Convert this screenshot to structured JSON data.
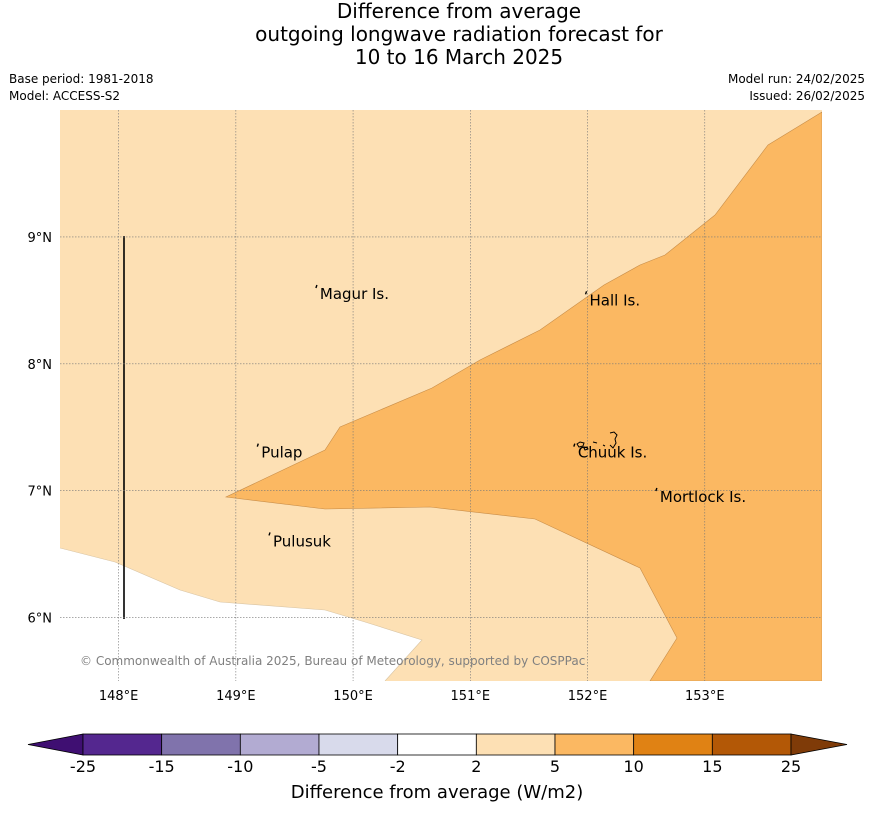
{
  "title": {
    "line1": "Difference from average",
    "line2": "outgoing longwave radiation forecast for",
    "line3": "10 to 16 March 2025"
  },
  "meta": {
    "base_period": "Base period: 1981-2018",
    "model": "Model: ACCESS-S2",
    "model_run": "Model run: 24/02/2025",
    "issued": "Issued: 26/02/2025"
  },
  "map": {
    "lon_range": [
      147.5,
      154.0
    ],
    "lat_range": [
      5.5,
      10.0
    ],
    "lon_ticks": [
      "148°E",
      "149°E",
      "150°E",
      "151°E",
      "152°E",
      "153°E"
    ],
    "lat_ticks": [
      "6°N",
      "7°N",
      "8°N",
      "9°N"
    ],
    "colors": {
      "band_2_5": "#fde0b4",
      "band_5_10": "#fbb862",
      "below_2": "#ffffff"
    },
    "places": [
      {
        "name": "Magur Is.",
        "lon": 149.7,
        "lat": 8.55
      },
      {
        "name": "Hall Is.",
        "lon": 152.0,
        "lat": 8.5
      },
      {
        "name": "Pulap",
        "lon": 149.2,
        "lat": 7.3
      },
      {
        "name": "Chuuk Is.",
        "lon": 151.9,
        "lat": 7.3
      },
      {
        "name": "Mortlock Is.",
        "lon": 152.6,
        "lat": 6.95
      },
      {
        "name": "Pulusuk",
        "lon": 149.3,
        "lat": 6.6
      }
    ],
    "copyright": "© Commonwealth of Australia 2025, Bureau of Meteorology, supported by COSPPac"
  },
  "colorbar": {
    "label": "Difference from average (W/m2)",
    "ticks": [
      "-25",
      "-15",
      "-10",
      "-5",
      "-2",
      "2",
      "5",
      "10",
      "15",
      "25"
    ],
    "colors": [
      "#3f0f72",
      "#54278f",
      "#8073ac",
      "#b2abd2",
      "#d8daeb",
      "#ffffff",
      "#fde0b4",
      "#fbb862",
      "#e08214",
      "#b35806",
      "#7f3b08"
    ]
  }
}
